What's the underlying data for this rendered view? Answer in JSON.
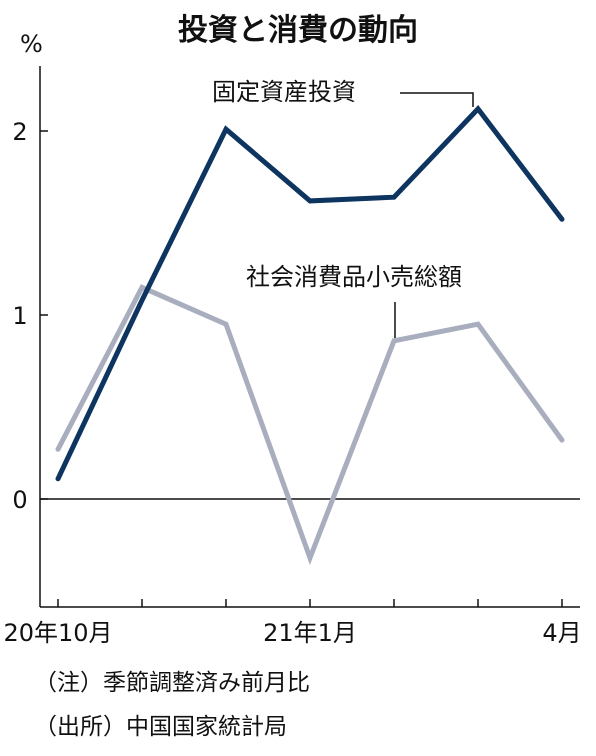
{
  "chart_data": {
    "type": "line",
    "title": "投資と消費の動向",
    "unit": "%",
    "categories": [
      "2020-10",
      "2020-11",
      "2020-12",
      "2021-01",
      "2021-02",
      "2021-03",
      "2021-04"
    ],
    "x_tick_labels": [
      {
        "category": "2020-10",
        "label": "20年10月"
      },
      {
        "category": "2021-01",
        "label": "21年1月"
      },
      {
        "category": "2021-04",
        "label": "4月"
      }
    ],
    "y_ticks": [
      0,
      1,
      2
    ],
    "ylim": [
      -0.55,
      2.35
    ],
    "grid": false,
    "zero_line": true,
    "series": [
      {
        "name": "固定資産投資",
        "color": "#0e3460",
        "values": [
          0.11,
          1.08,
          2.01,
          1.62,
          1.64,
          2.12,
          1.52
        ]
      },
      {
        "name": "社会消費品小売総額",
        "color": "#a8aebd",
        "values": [
          0.27,
          1.15,
          0.95,
          -0.32,
          0.86,
          0.95,
          0.32
        ]
      }
    ],
    "notes": [
      "（注）季節調整済み前月比",
      "（出所）中国国家統計局"
    ]
  }
}
